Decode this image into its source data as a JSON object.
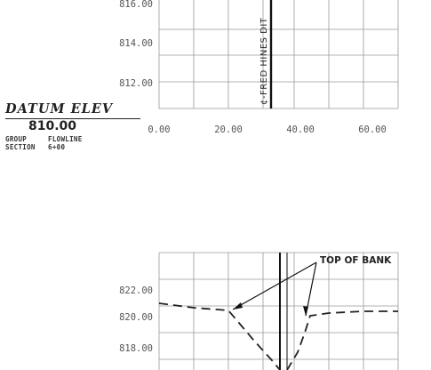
{
  "upper_section": {
    "elevation_labels": [
      "816.00",
      "814.00",
      "812.00"
    ],
    "station_labels": [
      "0.00",
      "20.00",
      "40.00",
      "60.00"
    ],
    "centerline_label": "¢-FRED HINES DIT"
  },
  "datum": {
    "title": "DATUM ELEV",
    "value": "810.00",
    "group_label": "GROUP",
    "group_value": "FLOWLINE",
    "section_label": "SECTION",
    "section_value": "6+00"
  },
  "lower_section": {
    "elevation_labels": [
      "822.00",
      "820.00",
      "818.00"
    ],
    "callout": "TOP OF BANK"
  }
}
